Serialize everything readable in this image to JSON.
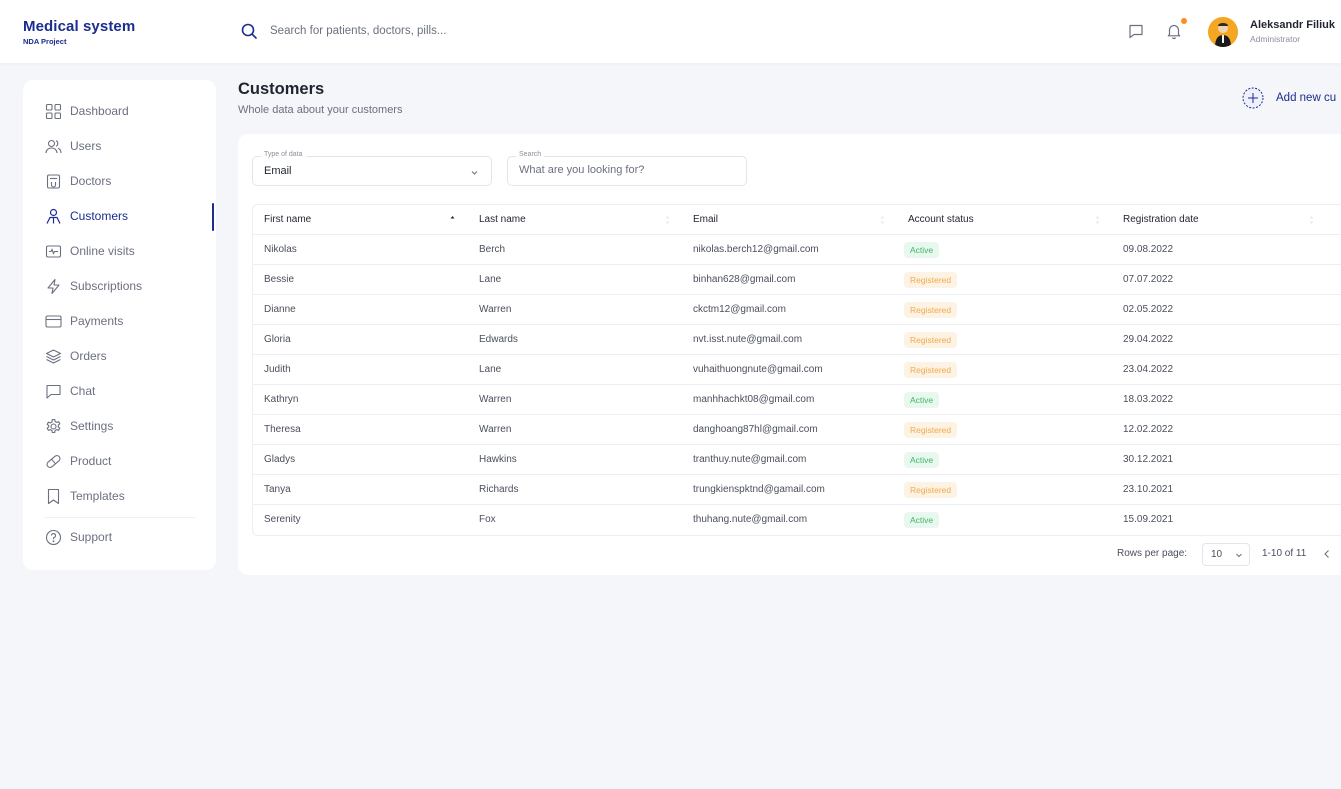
{
  "brand": {
    "title": "Medical system",
    "subtitle": "NDA Project"
  },
  "header": {
    "search_placeholder": "Search for patients, doctors, pills...",
    "user_name": "Aleksandr Filiuk",
    "user_role": "Administrator"
  },
  "sidebar": {
    "items": [
      {
        "label": "Dashboard",
        "icon": "dashboard-icon"
      },
      {
        "label": "Users",
        "icon": "users-icon"
      },
      {
        "label": "Doctors",
        "icon": "doctors-icon"
      },
      {
        "label": "Customers",
        "icon": "customers-icon",
        "active": true
      },
      {
        "label": "Online visits",
        "icon": "online-visits-icon"
      },
      {
        "label": "Subscriptions",
        "icon": "subscriptions-icon"
      },
      {
        "label": "Payments",
        "icon": "payments-icon"
      },
      {
        "label": "Orders",
        "icon": "orders-icon"
      },
      {
        "label": "Chat",
        "icon": "chat-icon"
      },
      {
        "label": "Settings",
        "icon": "settings-icon"
      },
      {
        "label": "Product",
        "icon": "product-icon"
      },
      {
        "label": "Templates",
        "icon": "templates-icon"
      }
    ],
    "support_label": "Support"
  },
  "page": {
    "title": "Customers",
    "subtitle": "Whole data about your customers",
    "add_label": "Add new cu"
  },
  "filters": {
    "type_legend": "Type of data",
    "type_value": "Email",
    "search_legend": "Search",
    "search_placeholder": "What are you looking for?"
  },
  "table": {
    "columns": [
      "First name",
      "Last name",
      "Email",
      "Account status",
      "Registration date"
    ],
    "rows": [
      {
        "first": "Nikolas",
        "last": "Berch",
        "email": "nikolas.berch12@gmail.com",
        "status": "Active",
        "date": "09.08.2022"
      },
      {
        "first": "Bessie",
        "last": "Lane",
        "email": "binhan628@gmail.com",
        "status": "Registered",
        "date": "07.07.2022"
      },
      {
        "first": "Dianne",
        "last": "Warren",
        "email": "ckctm12@gmail.com",
        "status": "Registered",
        "date": "02.05.2022"
      },
      {
        "first": "Gloria",
        "last": "Edwards",
        "email": "nvt.isst.nute@gmail.com",
        "status": "Registered",
        "date": "29.04.2022"
      },
      {
        "first": "Judith",
        "last": "Lane",
        "email": "vuhaithuongnute@gmail.com",
        "status": "Registered",
        "date": "23.04.2022"
      },
      {
        "first": "Kathryn",
        "last": "Warren",
        "email": "manhhachkt08@gmail.com",
        "status": "Active",
        "date": "18.03.2022"
      },
      {
        "first": "Theresa",
        "last": "Warren",
        "email": "danghoang87hl@gmail.com",
        "status": "Registered",
        "date": "12.02.2022"
      },
      {
        "first": "Gladys",
        "last": "Hawkins",
        "email": "tranthuy.nute@gmail.com",
        "status": "Active",
        "date": "30.12.2021"
      },
      {
        "first": "Tanya",
        "last": "Richards",
        "email": "trungkienspktnd@gamail.com",
        "status": "Registered",
        "date": "23.10.2021"
      },
      {
        "first": "Serenity",
        "last": "Fox",
        "email": "thuhang.nute@gmail.com",
        "status": "Active",
        "date": "15.09.2021"
      }
    ]
  },
  "pagination": {
    "rows_per_page_label": "Rows per page:",
    "rows_per_page_value": "10",
    "range": "1-10 of 11"
  },
  "colors": {
    "brand": "#1b2d8f",
    "active_text": "#3cb86a",
    "active_bg": "#e9f8ee",
    "registered_text": "#f2a94b",
    "registered_bg": "#fdf3e5",
    "notification": "#ff8c1a"
  }
}
